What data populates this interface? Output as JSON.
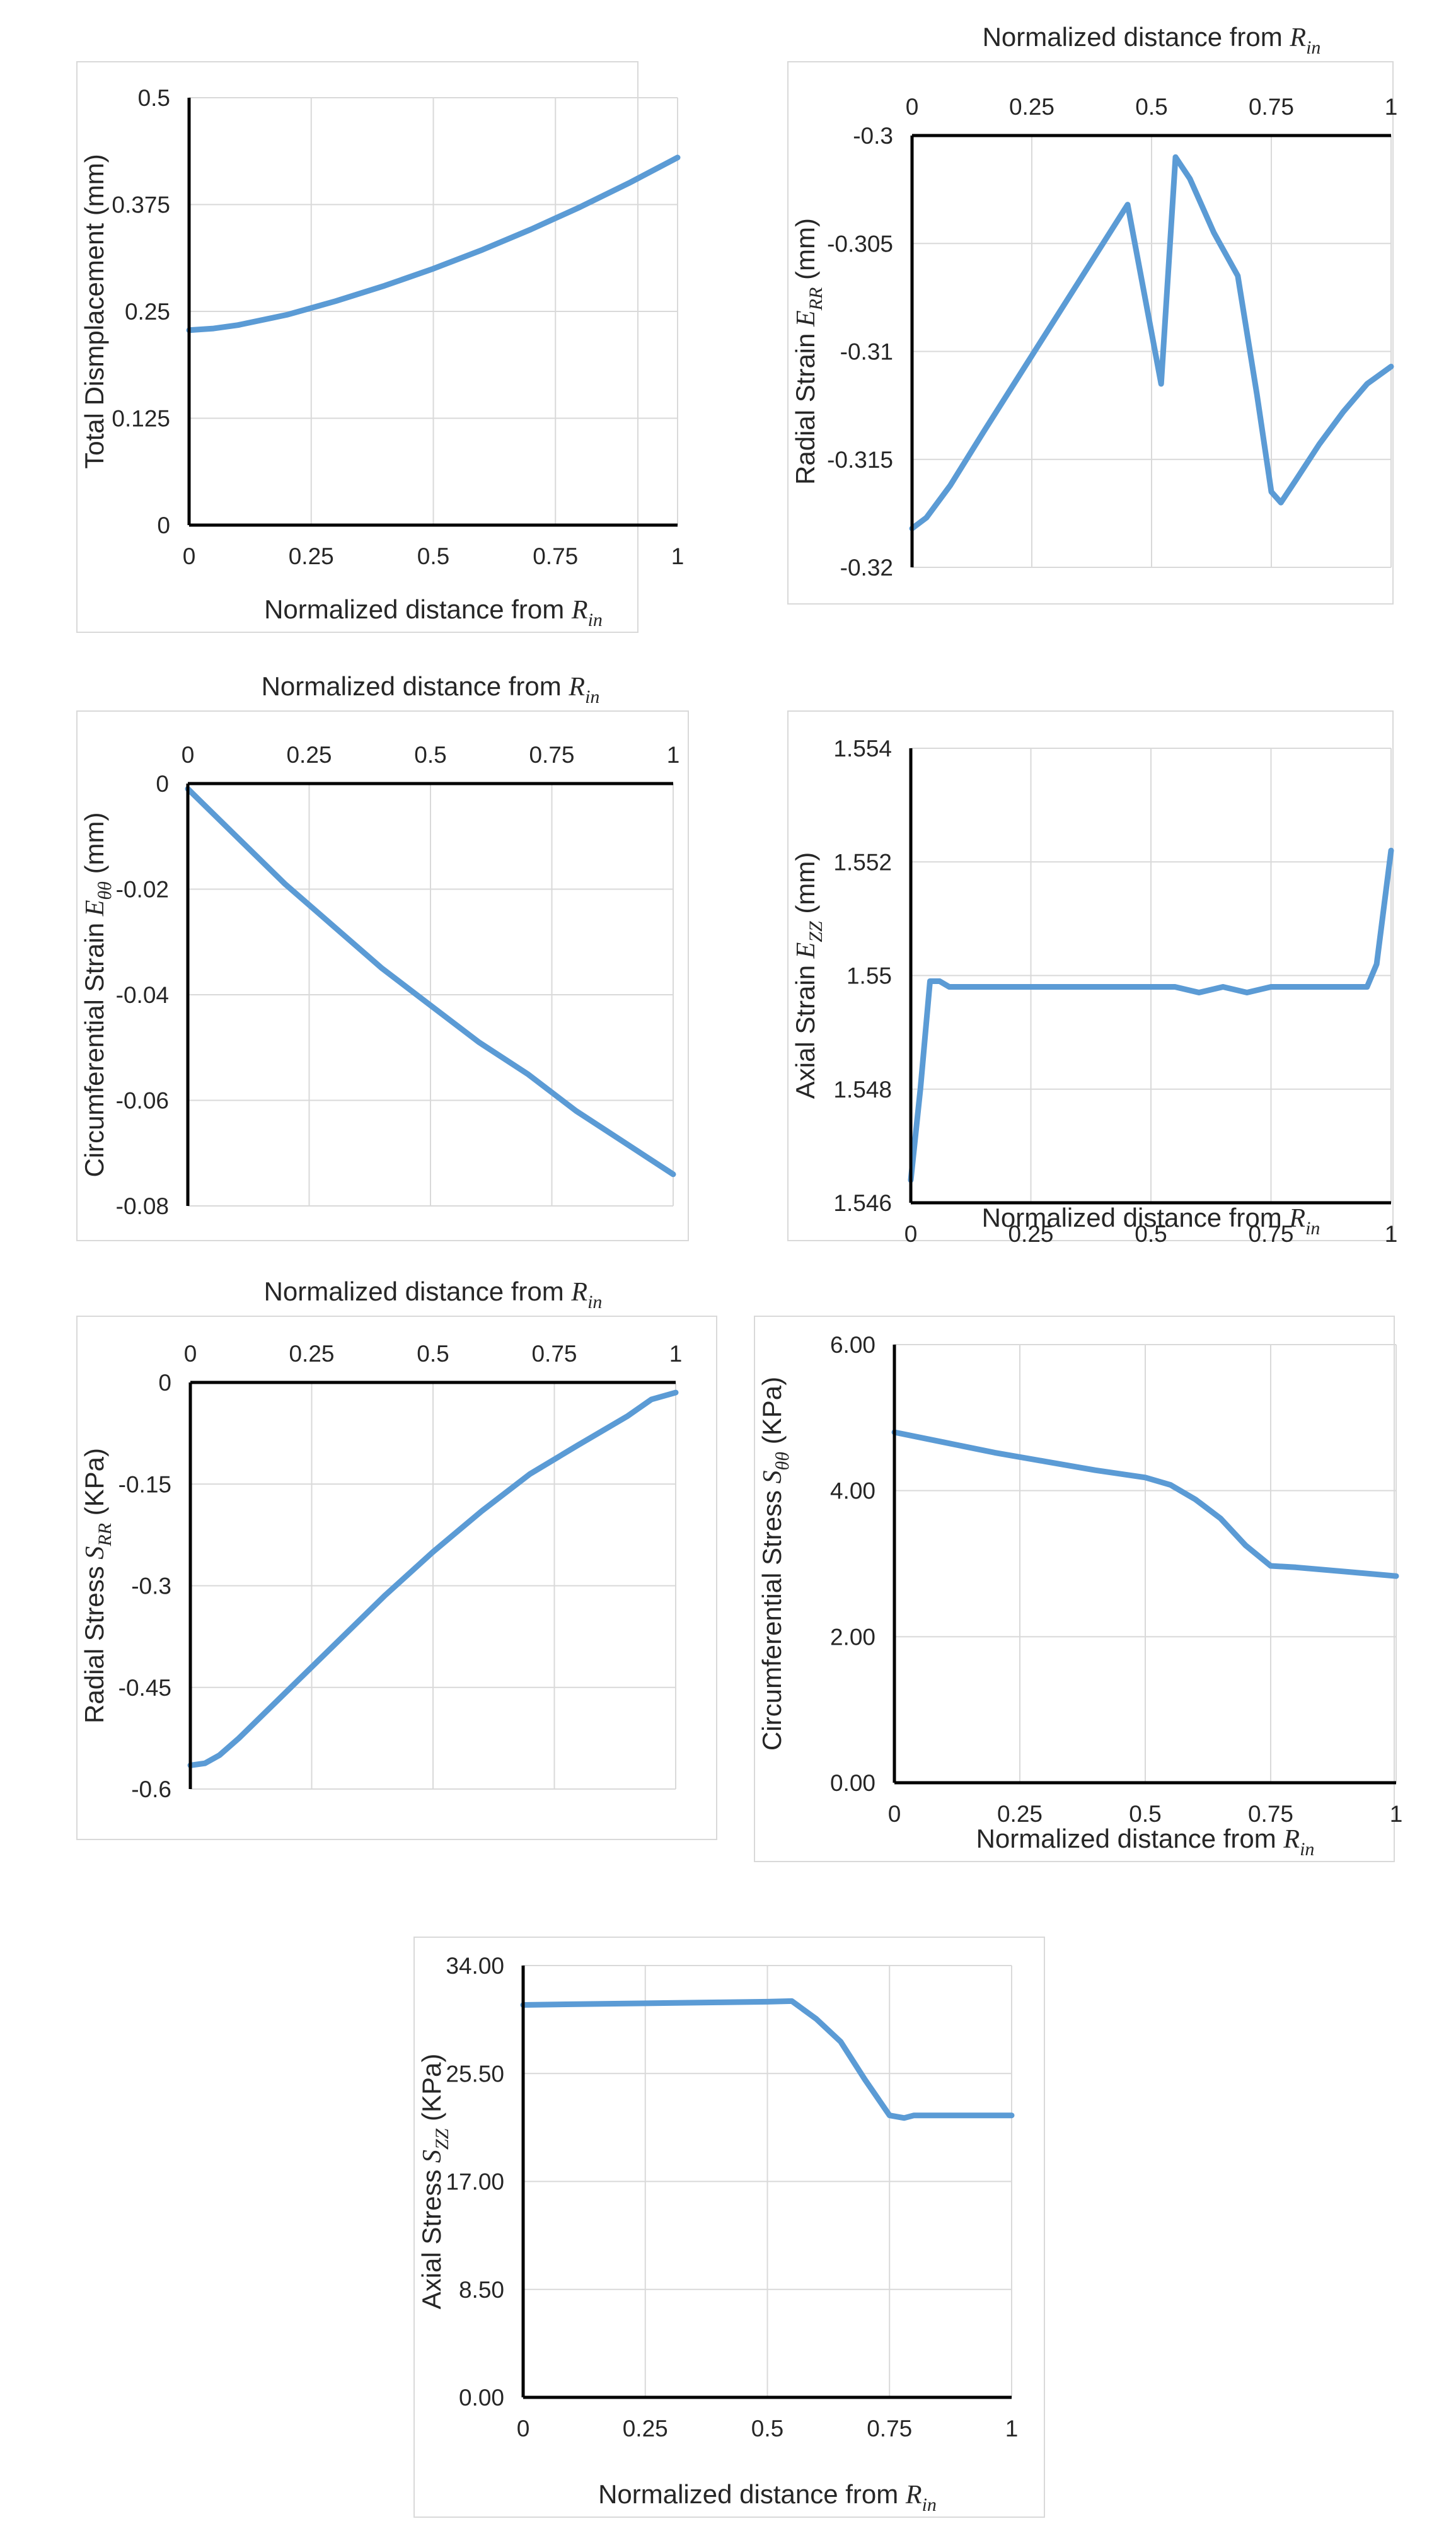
{
  "chart_data": [
    {
      "id": "disp",
      "type": "line",
      "xlabel": "Normalized distance from",
      "xlabel_symbol": "R",
      "xlabel_sub": "in",
      "ylabel": "Total Dismplacement (mm)",
      "ylabel_symbol": "",
      "ylabel_sub": "",
      "ylabel_unit": "",
      "x_ticks": [
        "0",
        "0.25",
        "0.5",
        "0.75",
        "1"
      ],
      "y_ticks": [
        "0.5",
        "0.375",
        "0.25",
        "0.125",
        "0"
      ],
      "xlim": [
        0,
        1
      ],
      "ylim": [
        0,
        0.5
      ],
      "x_axis_position": "bottom",
      "series": [
        {
          "name": "Total displacement",
          "color": "#5b9bd5",
          "x": [
            0,
            0.05,
            0.1,
            0.2,
            0.3,
            0.4,
            0.5,
            0.6,
            0.7,
            0.8,
            0.9,
            1.0
          ],
          "y": [
            0.228,
            0.23,
            0.234,
            0.246,
            0.262,
            0.28,
            0.3,
            0.322,
            0.346,
            0.372,
            0.4,
            0.43
          ]
        }
      ]
    },
    {
      "id": "err",
      "type": "line",
      "xlabel": "Normalized distance from",
      "xlabel_symbol": "R",
      "xlabel_sub": "in",
      "ylabel": "Radial Strain",
      "ylabel_symbol": "E",
      "ylabel_sub": "RR",
      "ylabel_unit": "(mm)",
      "x_ticks": [
        "0",
        "0.25",
        "0.5",
        "0.75",
        "1"
      ],
      "y_ticks": [
        "-0.3",
        "-0.305",
        "-0.31",
        "-0.315",
        "-0.32"
      ],
      "xlim": [
        0,
        1
      ],
      "ylim": [
        -0.32,
        -0.3
      ],
      "x_axis_position": "top",
      "series": [
        {
          "name": "Radial strain",
          "color": "#5b9bd5",
          "x": [
            0,
            0.03,
            0.08,
            0.15,
            0.25,
            0.35,
            0.45,
            0.52,
            0.55,
            0.58,
            0.63,
            0.68,
            0.72,
            0.75,
            0.77,
            0.8,
            0.85,
            0.9,
            0.95,
            1.0
          ],
          "y": [
            -0.3182,
            -0.3177,
            -0.3162,
            -0.3137,
            -0.3102,
            -0.3067,
            -0.3032,
            -0.3115,
            -0.301,
            -0.302,
            -0.3045,
            -0.3065,
            -0.312,
            -0.3165,
            -0.317,
            -0.316,
            -0.3143,
            -0.3128,
            -0.3115,
            -0.3107
          ]
        }
      ]
    },
    {
      "id": "ett",
      "type": "line",
      "xlabel": "Normalized distance from",
      "xlabel_symbol": "R",
      "xlabel_sub": "in",
      "ylabel": "Circumferential Strain",
      "ylabel_symbol": "E",
      "ylabel_sub": "θθ",
      "ylabel_unit": "(mm)",
      "x_ticks": [
        "0",
        "0.25",
        "0.5",
        "0.75",
        "1"
      ],
      "y_ticks": [
        "0",
        "-0.02",
        "-0.04",
        "-0.06",
        "-0.08"
      ],
      "xlim": [
        0,
        1
      ],
      "ylim": [
        -0.08,
        0
      ],
      "x_axis_position": "top",
      "series": [
        {
          "name": "Circumferential strain",
          "color": "#5b9bd5",
          "x": [
            0,
            0.1,
            0.2,
            0.3,
            0.4,
            0.5,
            0.6,
            0.7,
            0.8,
            0.9,
            1.0
          ],
          "y": [
            -0.001,
            -0.01,
            -0.019,
            -0.027,
            -0.035,
            -0.042,
            -0.049,
            -0.055,
            -0.062,
            -0.068,
            -0.074
          ]
        }
      ]
    },
    {
      "id": "ezz",
      "type": "line",
      "xlabel": "Normalized distance from",
      "xlabel_symbol": "R",
      "xlabel_sub": "in",
      "ylabel": "Axial Strain",
      "ylabel_symbol": "E",
      "ylabel_sub": "ZZ",
      "ylabel_unit": "(mm)",
      "x_ticks": [
        "0",
        "0.25",
        "0.5",
        "0.75",
        "1"
      ],
      "y_ticks": [
        "1.554",
        "1.552",
        "1.55",
        "1.548",
        "1.546"
      ],
      "xlim": [
        0,
        1
      ],
      "ylim": [
        1.546,
        1.554
      ],
      "x_axis_position": "bottom",
      "series": [
        {
          "name": "Axial strain",
          "color": "#5b9bd5",
          "x": [
            0,
            0.02,
            0.04,
            0.06,
            0.08,
            0.15,
            0.3,
            0.5,
            0.55,
            0.6,
            0.65,
            0.7,
            0.75,
            0.8,
            0.9,
            0.95,
            0.97,
            1.0
          ],
          "y": [
            1.5464,
            1.548,
            1.5499,
            1.5499,
            1.5498,
            1.5498,
            1.5498,
            1.5498,
            1.5498,
            1.5497,
            1.5498,
            1.5497,
            1.5498,
            1.5498,
            1.5498,
            1.5498,
            1.5502,
            1.5522
          ]
        }
      ]
    },
    {
      "id": "srr",
      "type": "line",
      "xlabel": "Normalized distance from",
      "xlabel_symbol": "R",
      "xlabel_sub": "in",
      "ylabel": "Radial Stress",
      "ylabel_symbol": "S",
      "ylabel_sub": "RR",
      "ylabel_unit": "(KPa)",
      "x_ticks": [
        "0",
        "0.25",
        "0.5",
        "0.75",
        "1"
      ],
      "y_ticks": [
        "0",
        "-0.15",
        "-0.3",
        "-0.45",
        "-0.6"
      ],
      "xlim": [
        0,
        1
      ],
      "ylim": [
        -0.6,
        0
      ],
      "x_axis_position": "top",
      "series": [
        {
          "name": "Radial stress",
          "color": "#5b9bd5",
          "x": [
            0,
            0.03,
            0.06,
            0.1,
            0.2,
            0.3,
            0.4,
            0.5,
            0.6,
            0.7,
            0.8,
            0.9,
            0.95,
            1.0
          ],
          "y": [
            -0.565,
            -0.562,
            -0.55,
            -0.525,
            -0.455,
            -0.385,
            -0.315,
            -0.25,
            -0.19,
            -0.135,
            -0.092,
            -0.05,
            -0.025,
            -0.015
          ]
        }
      ]
    },
    {
      "id": "stt",
      "type": "line",
      "xlabel": "Normalized distance from",
      "xlabel_symbol": "R",
      "xlabel_sub": "in",
      "ylabel": "Circumferential Stress",
      "ylabel_symbol": "S",
      "ylabel_sub": "θθ",
      "ylabel_unit": "(KPa)",
      "x_ticks": [
        "0",
        "0.25",
        "0.5",
        "0.75",
        "1"
      ],
      "y_ticks": [
        "6.00",
        "4.00",
        "2.00",
        "0.00"
      ],
      "xlim": [
        0,
        1
      ],
      "ylim": [
        0,
        6
      ],
      "x_axis_position": "bottom",
      "series": [
        {
          "name": "Circumferential stress",
          "color": "#5b9bd5",
          "x": [
            0,
            0.1,
            0.2,
            0.3,
            0.4,
            0.5,
            0.55,
            0.6,
            0.65,
            0.7,
            0.75,
            0.8,
            0.9,
            1.0
          ],
          "y": [
            4.8,
            4.66,
            4.52,
            4.4,
            4.28,
            4.18,
            4.08,
            3.88,
            3.62,
            3.25,
            2.97,
            2.95,
            2.89,
            2.83
          ]
        }
      ]
    },
    {
      "id": "szz",
      "type": "line",
      "xlabel": "Normalized distance from",
      "xlabel_symbol": "R",
      "xlabel_sub": "in",
      "ylabel": "Axial Stress",
      "ylabel_symbol": "S",
      "ylabel_sub": "ZZ",
      "ylabel_unit": "(KPa)",
      "x_ticks": [
        "0",
        "0.25",
        "0.5",
        "0.75",
        "1"
      ],
      "y_ticks": [
        "34.00",
        "25.50",
        "17.00",
        "8.50",
        "0.00"
      ],
      "xlim": [
        0,
        1
      ],
      "ylim": [
        0,
        34
      ],
      "x_axis_position": "bottom",
      "series": [
        {
          "name": "Axial stress",
          "color": "#5b9bd5",
          "x": [
            0,
            0.1,
            0.2,
            0.3,
            0.4,
            0.5,
            0.55,
            0.6,
            0.65,
            0.7,
            0.75,
            0.78,
            0.8,
            0.9,
            1.0
          ],
          "y": [
            30.9,
            30.95,
            31.0,
            31.05,
            31.1,
            31.15,
            31.2,
            29.8,
            28.0,
            25.0,
            22.2,
            22.0,
            22.2,
            22.2,
            22.2
          ]
        }
      ]
    }
  ]
}
